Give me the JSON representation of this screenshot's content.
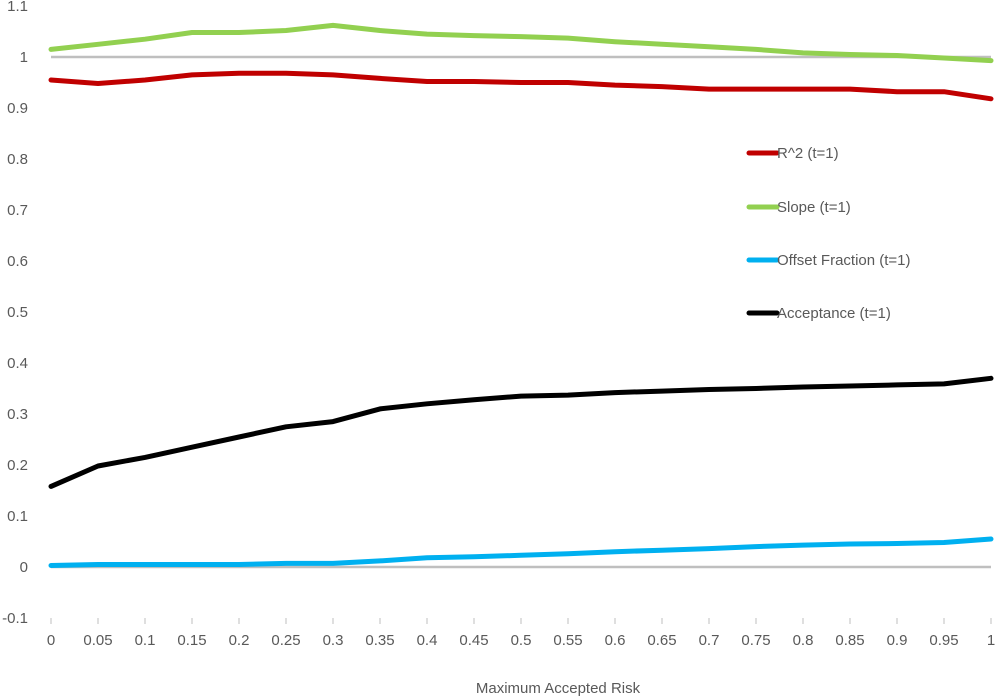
{
  "chart_data": {
    "type": "line",
    "title": "",
    "xlabel": "Maximum Accepted Risk",
    "ylabel": "",
    "xlim": [
      0,
      1
    ],
    "ylim": [
      -0.1,
      1.1
    ],
    "x_ticks": [
      0,
      0.05,
      0.1,
      0.15,
      0.2,
      0.25,
      0.3,
      0.35,
      0.4,
      0.45,
      0.5,
      0.55,
      0.6,
      0.65,
      0.7,
      0.75,
      0.8,
      0.85,
      0.9,
      0.95,
      1
    ],
    "x_tick_labels": [
      "0",
      "0.05",
      "0.1",
      "0.15",
      "0.2",
      "0.25",
      "0.3",
      "0.35",
      "0.4",
      "0.45",
      "0.5",
      "0.55",
      "0.6",
      "0.65",
      "0.7",
      "0.75",
      "0.8",
      "0.85",
      "0.9",
      "0.95",
      "1"
    ],
    "y_ticks": [
      -0.1,
      0,
      0.1,
      0.2,
      0.3,
      0.4,
      0.5,
      0.6,
      0.7,
      0.8,
      0.9,
      1,
      1.1
    ],
    "y_tick_labels": [
      "-0.1",
      "0",
      "0.1",
      "0.2",
      "0.3",
      "0.4",
      "0.5",
      "0.6",
      "0.7",
      "0.8",
      "0.9",
      "1",
      "1.1"
    ],
    "reference_lines": [
      {
        "y": 1,
        "color": "#BFBFBF"
      },
      {
        "y": 0,
        "color": "#BFBFBF"
      }
    ],
    "legend_position": "right",
    "x": [
      0,
      0.05,
      0.1,
      0.15,
      0.2,
      0.25,
      0.3,
      0.35,
      0.4,
      0.45,
      0.5,
      0.55,
      0.6,
      0.65,
      0.7,
      0.75,
      0.8,
      0.85,
      0.9,
      0.95,
      1
    ],
    "series": [
      {
        "name": "R^2 (t=1)",
        "color": "#C00000",
        "values": [
          0.955,
          0.948,
          0.955,
          0.965,
          0.968,
          0.968,
          0.965,
          0.958,
          0.952,
          0.952,
          0.95,
          0.95,
          0.945,
          0.942,
          0.937,
          0.937,
          0.937,
          0.937,
          0.932,
          0.932,
          0.918
        ]
      },
      {
        "name": "Slope (t=1)",
        "color": "#92D050",
        "values": [
          1.015,
          1.025,
          1.035,
          1.048,
          1.048,
          1.052,
          1.062,
          1.052,
          1.045,
          1.042,
          1.04,
          1.037,
          1.03,
          1.025,
          1.02,
          1.015,
          1.008,
          1.005,
          1.003,
          0.998,
          0.993
        ]
      },
      {
        "name": "Offset Fraction (t=1)",
        "color": "#00B0F0",
        "values": [
          0.003,
          0.005,
          0.005,
          0.005,
          0.005,
          0.007,
          0.007,
          0.012,
          0.018,
          0.02,
          0.023,
          0.026,
          0.03,
          0.033,
          0.036,
          0.04,
          0.043,
          0.045,
          0.046,
          0.048,
          0.055
        ]
      },
      {
        "name": "Acceptance (t=1)",
        "color": "#000000",
        "values": [
          0.158,
          0.198,
          0.215,
          0.235,
          0.255,
          0.275,
          0.285,
          0.31,
          0.32,
          0.328,
          0.335,
          0.337,
          0.342,
          0.345,
          0.348,
          0.35,
          0.353,
          0.355,
          0.357,
          0.359,
          0.37
        ]
      }
    ]
  }
}
